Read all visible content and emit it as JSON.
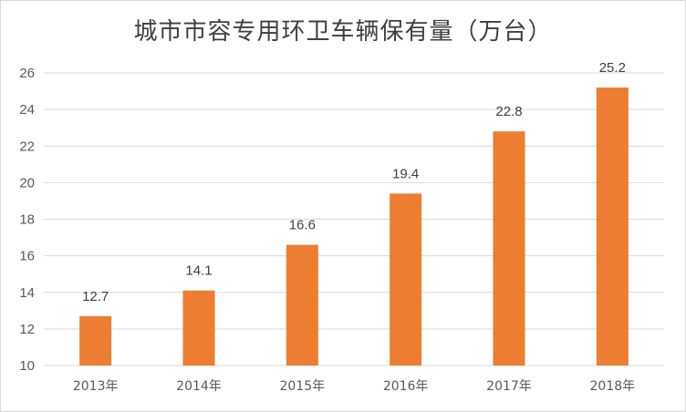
{
  "chart_data": {
    "type": "bar",
    "title": "城市市容专用环卫车辆保有量（万台）",
    "categories": [
      "2013年",
      "2014年",
      "2015年",
      "2016年",
      "2017年",
      "2018年"
    ],
    "values": [
      12.7,
      14.1,
      16.6,
      19.4,
      22.8,
      25.2
    ],
    "data_labels": [
      "12.7",
      "14.1",
      "16.6",
      "19.4",
      "22.8",
      "25.2"
    ],
    "ylim": [
      10,
      26
    ],
    "yticks": [
      10,
      12,
      14,
      16,
      18,
      20,
      22,
      24,
      26
    ],
    "grid": true,
    "legend": "none",
    "bar_color": "#ed7d31",
    "grid_color": "#d9d9d9"
  }
}
